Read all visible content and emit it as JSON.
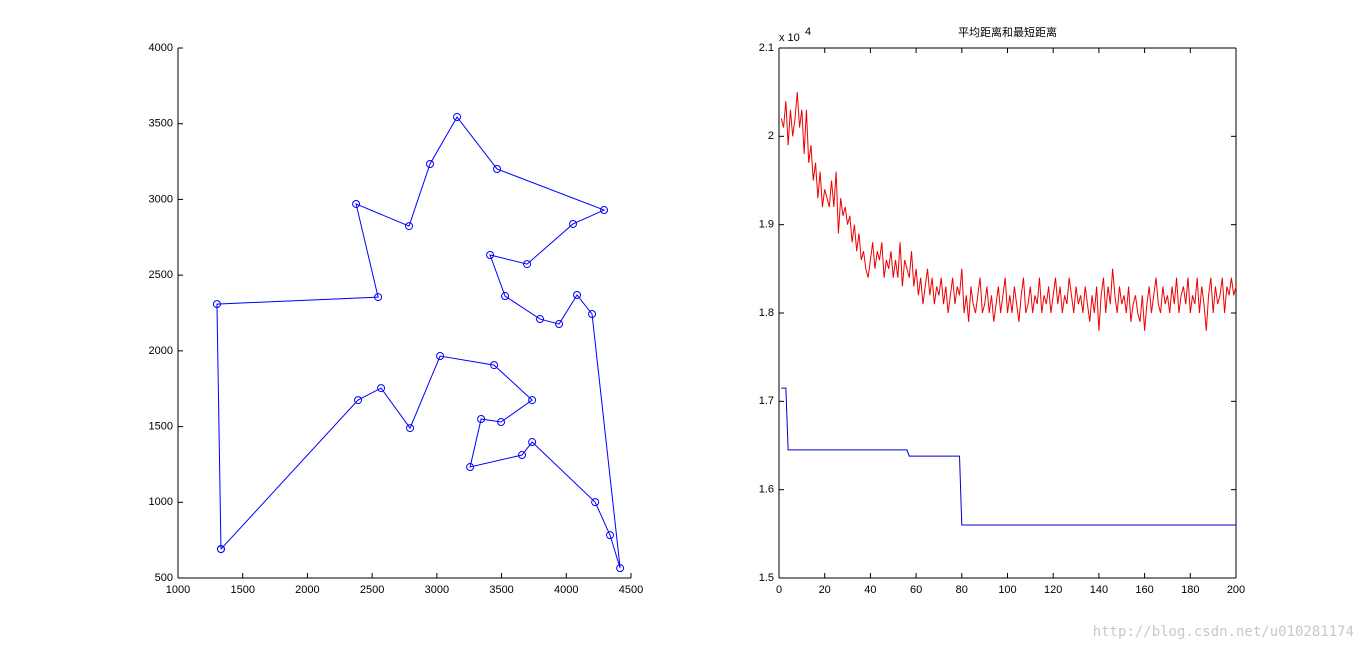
{
  "chart_data": [
    {
      "type": "line",
      "xlim": [
        1000,
        4500
      ],
      "xticks": [
        1000,
        1500,
        2000,
        2500,
        3000,
        3500,
        4000,
        4500
      ],
      "ylim": [
        500,
        4000
      ],
      "yticks": [
        500,
        1000,
        1500,
        2000,
        2500,
        3000,
        3500,
        4000
      ],
      "box": false,
      "series": [
        {
          "color": "#0000ff",
          "marker": "circle",
          "x": [
            1332,
            1301,
            2546,
            2376,
            2785,
            2947,
            3156,
            3465,
            4292,
            4052,
            3697,
            3411,
            3527,
            3797,
            3944,
            4083,
            4199,
            4416,
            4338,
            4223,
            3736,
            3658,
            3257,
            3342,
            3496,
            3736,
            3442,
            3025,
            2793,
            2569,
            2391,
            1332
          ],
          "values": [
            691,
            2309,
            2355,
            2970,
            2824,
            3234,
            3544,
            3201,
            2930,
            2838,
            2573,
            2633,
            2362,
            2210,
            2177,
            2369,
            2243,
            565,
            783,
            1001,
            1398,
            1312,
            1233,
            1550,
            1530,
            1675,
            1906,
            1966,
            1490,
            1754,
            1675,
            691
          ]
        }
      ]
    },
    {
      "type": "line",
      "title": "平均距离和最短距离",
      "y_multiplier_base": "x 10",
      "y_multiplier_exponent": "4",
      "xlim": [
        0,
        200
      ],
      "xticks": [
        0,
        20,
        40,
        60,
        80,
        100,
        120,
        140,
        160,
        180,
        200
      ],
      "ylim": [
        1.5,
        2.1
      ],
      "yticks": [
        1.5,
        1.6,
        1.7,
        1.8,
        1.9,
        2,
        2.1
      ],
      "box": true,
      "series": [
        {
          "color": "#ee0000",
          "x": [
            1,
            2,
            3,
            4,
            5,
            6,
            7,
            8,
            9,
            10,
            11,
            12,
            13,
            14,
            15,
            16,
            17,
            18,
            19,
            20,
            21,
            22,
            23,
            24,
            25,
            26,
            27,
            28,
            29,
            30,
            31,
            32,
            33,
            34,
            35,
            36,
            37,
            38,
            39,
            40,
            41,
            42,
            43,
            44,
            45,
            46,
            47,
            48,
            49,
            50,
            51,
            52,
            53,
            54,
            55,
            56,
            57,
            58,
            59,
            60,
            61,
            62,
            63,
            64,
            65,
            66,
            67,
            68,
            69,
            70,
            71,
            72,
            73,
            74,
            75,
            76,
            77,
            78,
            79,
            80,
            81,
            82,
            83,
            84,
            85,
            86,
            87,
            88,
            89,
            90,
            91,
            92,
            93,
            94,
            95,
            96,
            97,
            98,
            99,
            100,
            101,
            102,
            103,
            104,
            105,
            106,
            107,
            108,
            109,
            110,
            111,
            112,
            113,
            114,
            115,
            116,
            117,
            118,
            119,
            120,
            121,
            122,
            123,
            124,
            125,
            126,
            127,
            128,
            129,
            130,
            131,
            132,
            133,
            134,
            135,
            136,
            137,
            138,
            139,
            140,
            141,
            142,
            143,
            144,
            145,
            146,
            147,
            148,
            149,
            150,
            151,
            152,
            153,
            154,
            155,
            156,
            157,
            158,
            159,
            160,
            161,
            162,
            163,
            164,
            165,
            166,
            167,
            168,
            169,
            170,
            171,
            172,
            173,
            174,
            175,
            176,
            177,
            178,
            179,
            180,
            181,
            182,
            183,
            184,
            185,
            186,
            187,
            188,
            189,
            190,
            191,
            192,
            193,
            194,
            195,
            196,
            197,
            198,
            199,
            200
          ],
          "values": [
            2.02,
            2.01,
            2.04,
            1.99,
            2.03,
            2.0,
            2.02,
            2.05,
            2.01,
            2.03,
            1.98,
            2.03,
            1.97,
            1.99,
            1.95,
            1.97,
            1.93,
            1.96,
            1.92,
            1.94,
            1.93,
            1.92,
            1.95,
            1.92,
            1.96,
            1.89,
            1.93,
            1.91,
            1.92,
            1.9,
            1.91,
            1.88,
            1.9,
            1.87,
            1.89,
            1.86,
            1.87,
            1.85,
            1.84,
            1.86,
            1.88,
            1.85,
            1.87,
            1.86,
            1.88,
            1.84,
            1.86,
            1.85,
            1.87,
            1.84,
            1.86,
            1.84,
            1.88,
            1.83,
            1.86,
            1.85,
            1.84,
            1.87,
            1.83,
            1.85,
            1.82,
            1.84,
            1.81,
            1.83,
            1.85,
            1.82,
            1.84,
            1.81,
            1.83,
            1.82,
            1.84,
            1.81,
            1.83,
            1.8,
            1.82,
            1.84,
            1.81,
            1.83,
            1.82,
            1.85,
            1.8,
            1.82,
            1.79,
            1.83,
            1.81,
            1.8,
            1.82,
            1.84,
            1.8,
            1.81,
            1.83,
            1.8,
            1.82,
            1.79,
            1.81,
            1.83,
            1.8,
            1.82,
            1.84,
            1.8,
            1.82,
            1.8,
            1.83,
            1.81,
            1.79,
            1.82,
            1.84,
            1.8,
            1.81,
            1.83,
            1.8,
            1.82,
            1.81,
            1.84,
            1.8,
            1.82,
            1.81,
            1.83,
            1.8,
            1.82,
            1.84,
            1.81,
            1.83,
            1.8,
            1.82,
            1.81,
            1.84,
            1.82,
            1.8,
            1.83,
            1.81,
            1.82,
            1.8,
            1.83,
            1.81,
            1.79,
            1.82,
            1.8,
            1.83,
            1.78,
            1.82,
            1.84,
            1.8,
            1.83,
            1.81,
            1.85,
            1.82,
            1.8,
            1.83,
            1.81,
            1.82,
            1.8,
            1.83,
            1.79,
            1.81,
            1.82,
            1.8,
            1.79,
            1.82,
            1.78,
            1.81,
            1.83,
            1.8,
            1.82,
            1.84,
            1.81,
            1.8,
            1.83,
            1.81,
            1.82,
            1.8,
            1.83,
            1.81,
            1.84,
            1.8,
            1.82,
            1.83,
            1.81,
            1.84,
            1.8,
            1.82,
            1.81,
            1.84,
            1.8,
            1.83,
            1.81,
            1.78,
            1.82,
            1.84,
            1.8,
            1.83,
            1.81,
            1.82,
            1.84,
            1.8,
            1.83,
            1.82,
            1.84,
            1.82,
            1.83
          ]
        },
        {
          "color": "#0000cc",
          "x": [
            1,
            3,
            4,
            56,
            57,
            79,
            80,
            200
          ],
          "values": [
            1.715,
            1.715,
            1.645,
            1.645,
            1.638,
            1.638,
            1.56,
            1.56
          ]
        }
      ]
    }
  ],
  "watermark": "http://blog.csdn.net/u010281174"
}
